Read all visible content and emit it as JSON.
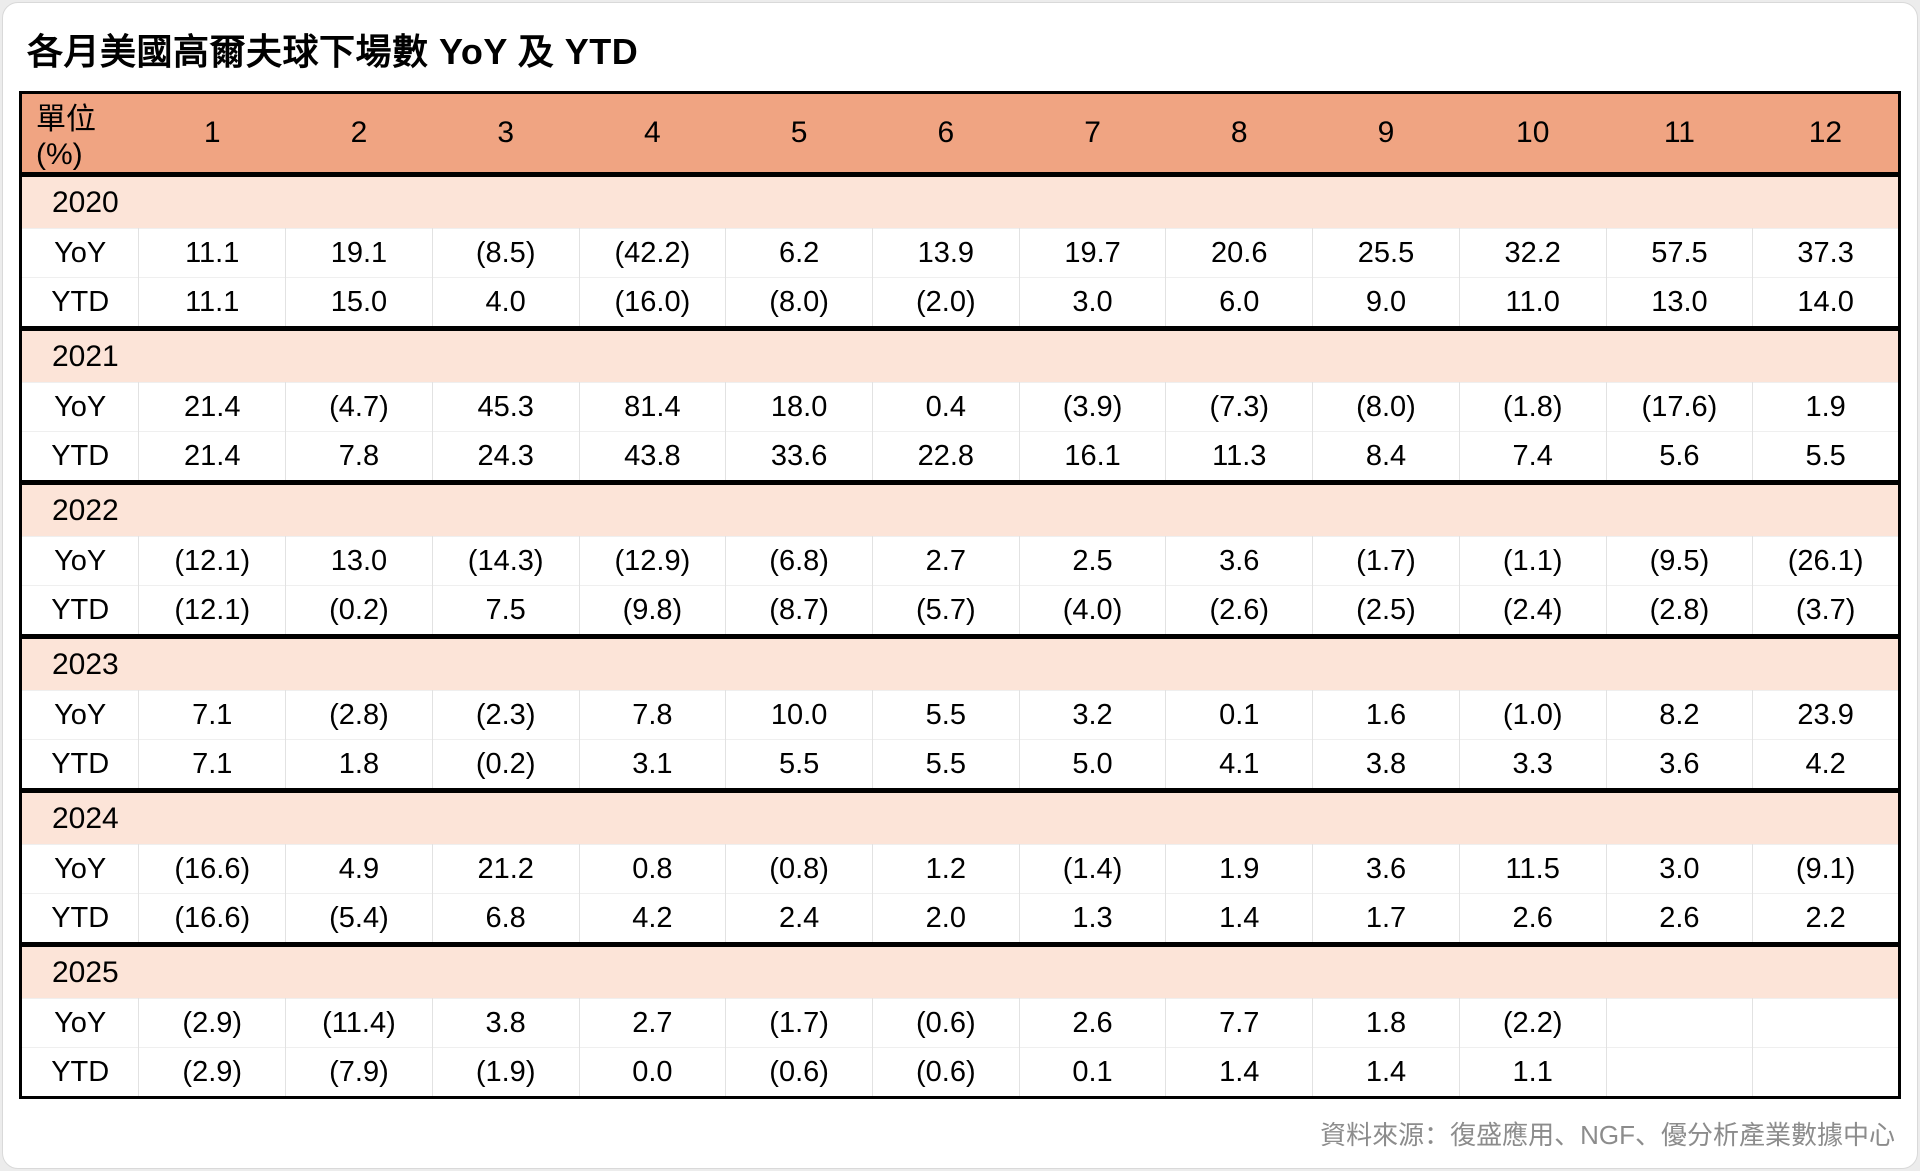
{
  "title": "各月美國高爾夫球下場數 YoY 及 YTD",
  "chart_data": {
    "type": "table",
    "unit_label": "單位(%)",
    "columns": [
      "1",
      "2",
      "3",
      "4",
      "5",
      "6",
      "7",
      "8",
      "9",
      "10",
      "11",
      "12"
    ],
    "metric_labels": {
      "yoy": "YoY",
      "ytd": "YTD"
    },
    "rows": [
      {
        "year": "2020",
        "yoy": [
          "11.1",
          "19.1",
          "(8.5)",
          "(42.2)",
          "6.2",
          "13.9",
          "19.7",
          "20.6",
          "25.5",
          "32.2",
          "57.5",
          "37.3"
        ],
        "ytd": [
          "11.1",
          "15.0",
          "4.0",
          "(16.0)",
          "(8.0)",
          "(2.0)",
          "3.0",
          "6.0",
          "9.0",
          "11.0",
          "13.0",
          "14.0"
        ]
      },
      {
        "year": "2021",
        "yoy": [
          "21.4",
          "(4.7)",
          "45.3",
          "81.4",
          "18.0",
          "0.4",
          "(3.9)",
          "(7.3)",
          "(8.0)",
          "(1.8)",
          "(17.6)",
          "1.9"
        ],
        "ytd": [
          "21.4",
          "7.8",
          "24.3",
          "43.8",
          "33.6",
          "22.8",
          "16.1",
          "11.3",
          "8.4",
          "7.4",
          "5.6",
          "5.5"
        ]
      },
      {
        "year": "2022",
        "yoy": [
          "(12.1)",
          "13.0",
          "(14.3)",
          "(12.9)",
          "(6.8)",
          "2.7",
          "2.5",
          "3.6",
          "(1.7)",
          "(1.1)",
          "(9.5)",
          "(26.1)"
        ],
        "ytd": [
          "(12.1)",
          "(0.2)",
          "7.5",
          "(9.8)",
          "(8.7)",
          "(5.7)",
          "(4.0)",
          "(2.6)",
          "(2.5)",
          "(2.4)",
          "(2.8)",
          "(3.7)"
        ]
      },
      {
        "year": "2023",
        "yoy": [
          "7.1",
          "(2.8)",
          "(2.3)",
          "7.8",
          "10.0",
          "5.5",
          "3.2",
          "0.1",
          "1.6",
          "(1.0)",
          "8.2",
          "23.9"
        ],
        "ytd": [
          "7.1",
          "1.8",
          "(0.2)",
          "3.1",
          "5.5",
          "5.5",
          "5.0",
          "4.1",
          "3.8",
          "3.3",
          "3.6",
          "4.2"
        ]
      },
      {
        "year": "2024",
        "yoy": [
          "(16.6)",
          "4.9",
          "21.2",
          "0.8",
          "(0.8)",
          "1.2",
          "(1.4)",
          "1.9",
          "3.6",
          "11.5",
          "3.0",
          "(9.1)"
        ],
        "ytd": [
          "(16.6)",
          "(5.4)",
          "6.8",
          "4.2",
          "2.4",
          "2.0",
          "1.3",
          "1.4",
          "1.7",
          "2.6",
          "2.6",
          "2.2"
        ]
      },
      {
        "year": "2025",
        "yoy": [
          "(2.9)",
          "(11.4)",
          "3.8",
          "2.7",
          "(1.7)",
          "(0.6)",
          "2.6",
          "7.7",
          "1.8",
          "(2.2)",
          "",
          ""
        ],
        "ytd": [
          "(2.9)",
          "(7.9)",
          "(1.9)",
          "0.0",
          "(0.6)",
          "(0.6)",
          "0.1",
          "1.4",
          "1.4",
          "1.1",
          "",
          ""
        ]
      }
    ]
  },
  "footer": {
    "source_label": "資料來源：復盛應用、NGF、優分析產業數據中心"
  },
  "colors": {
    "header_bg": "#F0A482",
    "year_row_bg": "#FCE4D8",
    "negative_text": "#F00000",
    "border_heavy": "#000000",
    "grid_line": "#E2E2E2",
    "footer_text": "#8C8C8C"
  }
}
